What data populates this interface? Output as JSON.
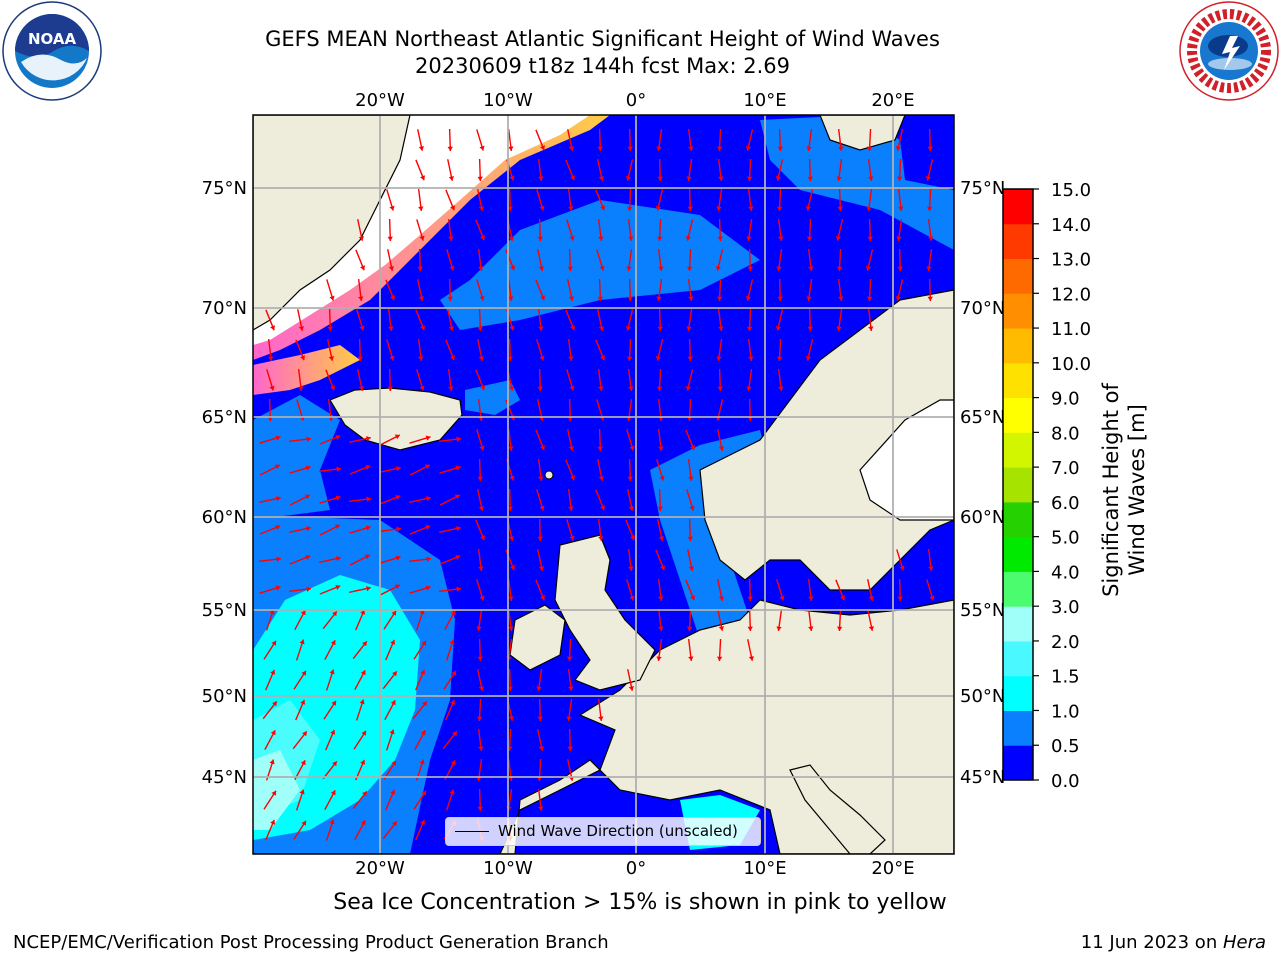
{
  "title": {
    "line1": "GEFS MEAN Northeast Atlantic Significant Height of Wind Waves",
    "line2": "20230609 t18z 144h fcst   Max: 2.69"
  },
  "logos": {
    "noaa": {
      "text": "NOAA",
      "ring_text": "NATIONAL OCEANIC AND ATMOSPHERIC ADMINISTRATION · U.S. DEPARTMENT OF COMMERCE"
    },
    "nws": {
      "ring_text": "NATIONAL WEATHER SERVICE"
    }
  },
  "map": {
    "lon_ticks_top": [
      "20°W",
      "10°W",
      "0°",
      "10°E",
      "20°E"
    ],
    "lon_ticks_bottom": [
      "20°W",
      "10°W",
      "0°",
      "10°E",
      "20°E"
    ],
    "lat_ticks_left": [
      "75°N",
      "70°N",
      "65°N",
      "60°N",
      "55°N",
      "50°N",
      "45°N"
    ],
    "lat_ticks_right": [
      "75°N",
      "70°N",
      "65°N",
      "60°N",
      "55°N",
      "50°N",
      "45°N"
    ],
    "legend_label": "Wind Wave Direction (unscaled)",
    "colors": {
      "land": "#eeeddc",
      "ice_free_no_data": "#ffffff",
      "ocean_low": "#0000ff",
      "ocean_mid": "#0a80ff",
      "ocean_high": "#00ffff",
      "ocean_higher": "#4afcfc",
      "ice_pink": "#ff66cc",
      "ice_yellow": "#ffd24a",
      "arrow": "#ff0000",
      "grid": "#b0b0b0"
    }
  },
  "colorbar": {
    "label": "Significant Height of Wind Waves [m]",
    "ticks": [
      "0.0",
      "0.5",
      "1.0",
      "1.5",
      "2.0",
      "3.0",
      "4.0",
      "5.0",
      "6.0",
      "7.0",
      "8.0",
      "9.0",
      "10.0",
      "11.0",
      "12.0",
      "13.0",
      "14.0",
      "15.0"
    ],
    "colors": [
      "#0000ff",
      "#0a80ff",
      "#00ffff",
      "#4af9ff",
      "#a0fff8",
      "#4bfc6e",
      "#00ea00",
      "#25d100",
      "#a6e300",
      "#d1f600",
      "#ffff00",
      "#ffe100",
      "#ffbb00",
      "#ff8f00",
      "#ff6a00",
      "#ff3a00",
      "#ff0000"
    ]
  },
  "caption": "Sea Ice Concentration > 15% is shown in pink to yellow",
  "footer": {
    "left": "NCEP/EMC/Verification Post Processing Product Generation Branch",
    "right_prefix": "11 Jun 2023 on ",
    "right_host": "Hera"
  }
}
